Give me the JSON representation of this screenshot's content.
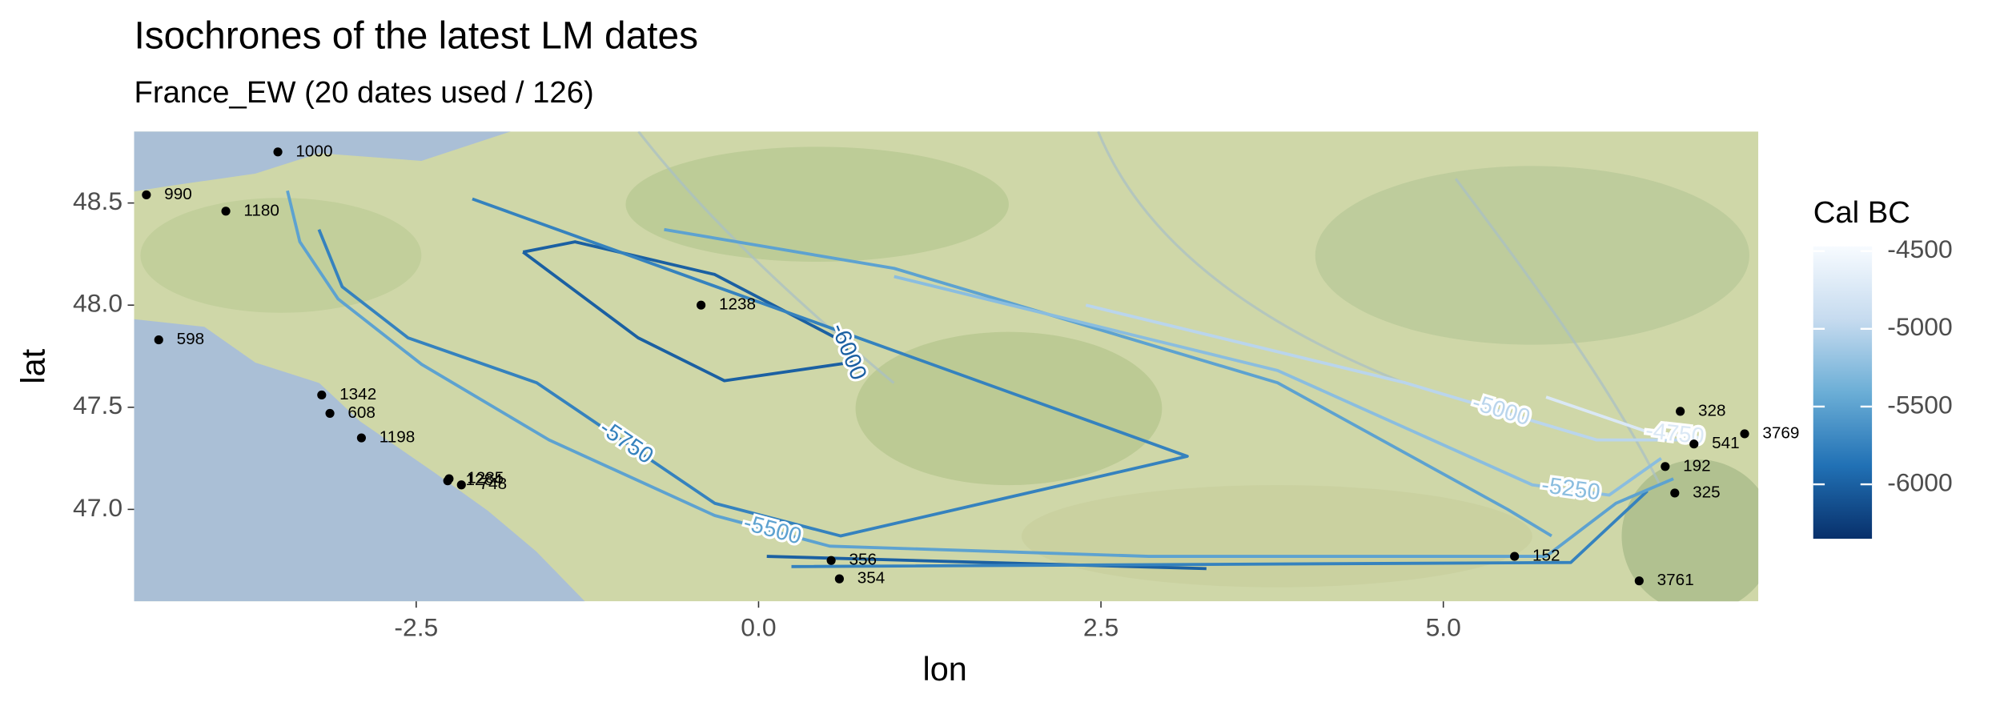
{
  "chart_data": {
    "type": "map",
    "title": "Isochrones of the latest LM dates",
    "subtitle": "France_EW (20 dates used / 126)",
    "x_label": "lon",
    "y_label": "lat",
    "xlim": [
      -4.56,
      7.3
    ],
    "ylim": [
      46.55,
      48.85
    ],
    "xticks": [
      -2.5,
      {
        "value": 0,
        "label": "0.0"
      },
      2.5,
      {
        "value": 5,
        "label": "5.0"
      }
    ],
    "yticks": [
      {
        "value": 47,
        "label": "47.0"
      },
      47.5,
      {
        "value": 48,
        "label": "48.0"
      },
      48.5
    ],
    "points": {
      "color": "#000000",
      "labels": [
        "1000",
        "990",
        "1180",
        "598",
        "1238",
        "1342",
        "608",
        "1198",
        "1285",
        "1284",
        "748",
        "356",
        "354",
        "152",
        "328",
        "3769",
        "541",
        "192",
        "325",
        "3761"
      ],
      "lon": [
        -3.51,
        -4.47,
        -3.89,
        -4.38,
        -0.42,
        -3.19,
        -3.13,
        -2.9,
        -2.26,
        -2.27,
        -2.17,
        0.53,
        0.59,
        5.52,
        6.73,
        7.2,
        6.83,
        6.62,
        6.69,
        6.43
      ],
      "lat": [
        48.75,
        48.54,
        48.46,
        47.83,
        48.0,
        47.56,
        47.47,
        47.35,
        47.15,
        47.14,
        47.12,
        46.75,
        46.66,
        46.77,
        47.48,
        47.37,
        47.32,
        47.21,
        47.08,
        46.65
      ]
    },
    "contours": [
      {
        "level": -6000,
        "lon": [
          -1.72,
          -0.88,
          -0.25,
          0.68,
          0.62,
          -0.32,
          -1.34,
          -1.72,
          null,
          0.06,
          3.27
        ],
        "lat": [
          48.26,
          47.84,
          47.63,
          47.72,
          47.82,
          48.15,
          48.31,
          48.26,
          null,
          46.77,
          46.71
        ]
      },
      {
        "level": -5750,
        "lon": [
          -2.09,
          3.13,
          0.6,
          -0.32,
          -1.62,
          -2.56,
          -3.04,
          -3.21,
          null,
          0.24,
          5.93,
          6.49
        ],
        "lat": [
          48.52,
          47.26,
          46.87,
          47.03,
          47.62,
          47.84,
          48.09,
          48.37,
          null,
          46.72,
          46.74,
          47.09
        ]
      },
      {
        "level": -5500,
        "lon": [
          -3.44,
          -3.35,
          -3.07,
          -2.46,
          -1.53,
          -0.32,
          0.52,
          2.85,
          5.75,
          6.26,
          6.68,
          null,
          -0.69,
          0.99,
          3.79,
          5.47,
          5.79
        ],
        "lat": [
          48.56,
          48.31,
          48.03,
          47.71,
          47.34,
          46.97,
          46.82,
          46.77,
          46.77,
          47.03,
          47.15,
          null,
          48.37,
          48.18,
          47.62,
          47.0,
          46.87
        ]
      },
      {
        "level": -5250,
        "lon": [
          0.99,
          3.79,
          5.65,
          6.21,
          6.59
        ],
        "lat": [
          48.14,
          47.68,
          47.12,
          47.07,
          47.25
        ]
      },
      {
        "level": -5000,
        "lon": [
          2.39,
          4.72,
          6.12,
          6.77
        ],
        "lat": [
          48.0,
          47.62,
          47.34,
          47.34
        ]
      },
      {
        "level": -4750,
        "lon": [
          5.75,
          6.49,
          6.89
        ],
        "lat": [
          47.55,
          47.38,
          47.35
        ]
      }
    ],
    "legend": {
      "title": "Cal BC",
      "lim": [
        -6350,
        -4470
      ],
      "ticks": [
        -4500,
        -5000,
        -5500,
        -6000
      ],
      "colors": [
        "#08306b",
        "#2171b5",
        "#6baed6",
        "#c6dbef",
        "#f7fbff"
      ]
    }
  }
}
